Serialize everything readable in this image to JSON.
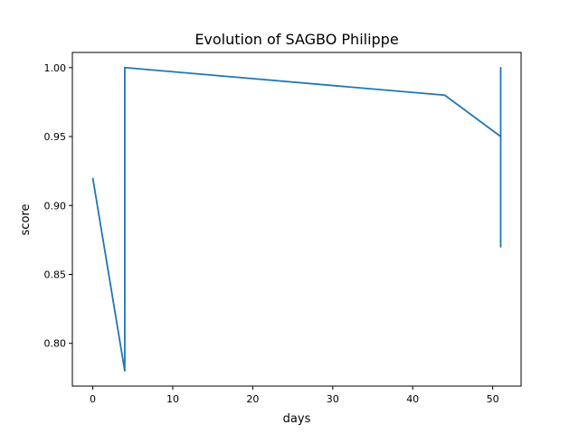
{
  "chart_data": {
    "type": "line",
    "title": "Evolution of SAGBO Philippe",
    "xlabel": "days",
    "ylabel": "score",
    "xlim": [
      -2.55,
      53.55
    ],
    "ylim": [
      0.769,
      1.011
    ],
    "xticks": [
      0,
      10,
      20,
      30,
      40,
      50
    ],
    "xtick_labels": [
      "0",
      "10",
      "20",
      "30",
      "40",
      "50"
    ],
    "yticks": [
      0.8,
      0.85,
      0.9,
      0.95,
      1.0
    ],
    "ytick_labels": [
      "0.80",
      "0.85",
      "0.90",
      "0.95",
      "1.00"
    ],
    "grid": false,
    "series": [
      {
        "color": "#1f77b4",
        "x": [
          0,
          4,
          4,
          44,
          51,
          51,
          51,
          51,
          51
        ],
        "y": [
          0.92,
          0.78,
          1.0,
          0.98,
          0.95,
          0.87,
          1.0,
          0.87,
          1.0
        ]
      }
    ]
  }
}
